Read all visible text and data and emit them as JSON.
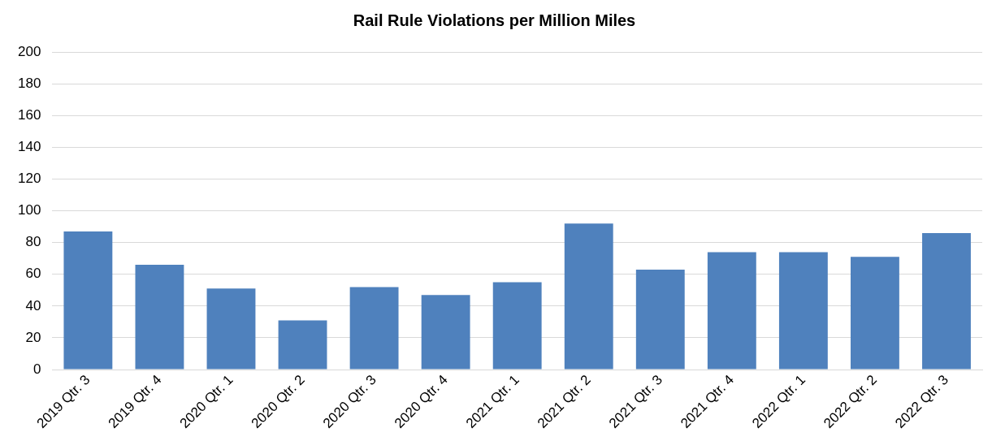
{
  "chart_data": {
    "type": "bar",
    "title": "Rail Rule Violations per Million Miles",
    "categories": [
      "2019 Qtr. 3",
      "2019 Qtr. 4",
      "2020 Qtr. 1",
      "2020 Qtr. 2",
      "2020 Qtr. 3",
      "2020 Qtr. 4",
      "2021 Qtr. 1",
      "2021 Qtr. 2",
      "2021 Qtr. 3",
      "2021 Qtr. 4",
      "2022 Qtr. 1",
      "2022 Qtr. 2",
      "2022 Qtr. 3"
    ],
    "values": [
      87,
      66,
      51,
      31,
      52,
      47,
      55,
      92,
      63,
      74,
      74,
      71,
      86
    ],
    "color": "#4f81bd",
    "ylim": [
      0,
      200
    ],
    "yticks": [
      0,
      20,
      40,
      60,
      80,
      100,
      120,
      140,
      160,
      180,
      200
    ],
    "grid": "y"
  }
}
